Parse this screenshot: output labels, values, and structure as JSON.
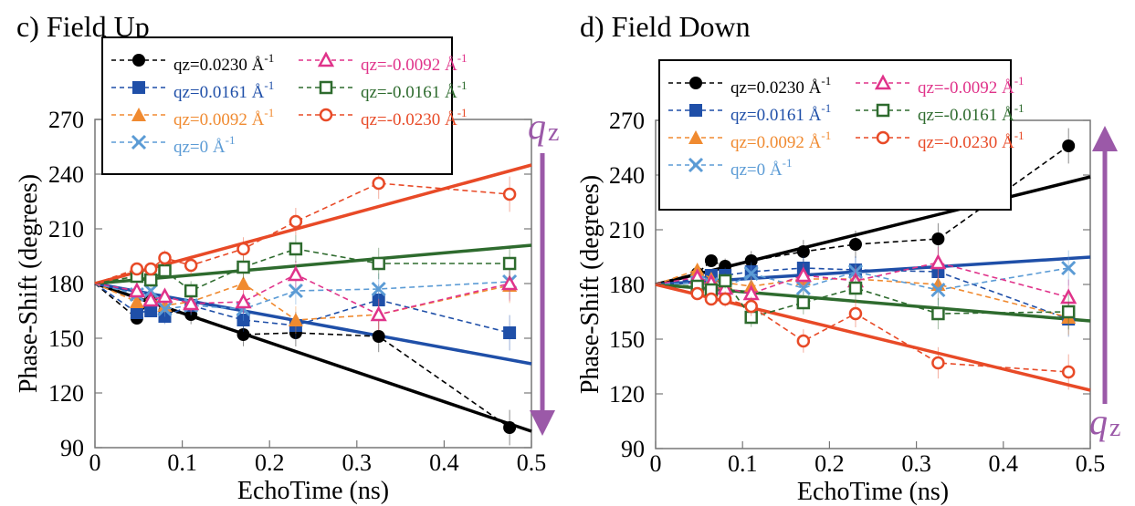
{
  "chart_data": [
    {
      "type": "scatter",
      "panel_label": "c)",
      "title": "Field Up",
      "xlabel": "EchoTime (ns)",
      "ylabel": "Phase-Shift (degrees)",
      "xlim": [
        0,
        0.5
      ],
      "ylim": [
        90,
        270
      ],
      "xticks": [
        "0",
        "0.1",
        "0.2",
        "0.3",
        "0.4",
        "0.5"
      ],
      "yticks": [
        "90",
        "120",
        "150",
        "180",
        "210",
        "240",
        "270"
      ],
      "grid": false,
      "legend_position": "top-left",
      "arrow": {
        "direction": "down",
        "label": "q",
        "label_sub": "z",
        "color": "#9b59a8"
      },
      "x": [
        0.048,
        0.064,
        0.08,
        0.11,
        0.17,
        0.23,
        0.325,
        0.475
      ],
      "series": [
        {
          "name": "qz=0.0230 Å-1",
          "color": "#000000",
          "marker": "circle-filled",
          "values": [
            161,
            172,
            165,
            163,
            152,
            153,
            151,
            101
          ],
          "fit_end": 99
        },
        {
          "name": "qz=0.0161 Å-1",
          "color": "#1f4fa8",
          "marker": "square-filled",
          "values": [
            164,
            165,
            162,
            168,
            160,
            157,
            171,
            153
          ],
          "fit_end": 136
        },
        {
          "name": "qz=0.0092 Å-1",
          "color": "#f08a30",
          "marker": "triangle-filled",
          "values": [
            170,
            172,
            168,
            170,
            180,
            160,
            163,
            179
          ],
          "fit_end": null
        },
        {
          "name": "qz=0 Å-1",
          "color": "#5b9bd5",
          "marker": "x",
          "values": [
            174,
            176,
            166,
            168,
            166,
            176,
            177,
            181
          ],
          "fit_end": null
        },
        {
          "name": "qz=-0.0092 Å-1",
          "color": "#e0338a",
          "marker": "triangle-open",
          "values": [
            176,
            171,
            173,
            169,
            170,
            185,
            163,
            180
          ],
          "fit_end": null
        },
        {
          "name": "qz=-0.0161 Å-1",
          "color": "#2e6b2e",
          "marker": "square-open",
          "values": [
            184,
            182,
            187,
            176,
            189,
            199,
            191,
            191
          ],
          "fit_end": 201
        },
        {
          "name": "qz=-0.0230 Å-1",
          "color": "#e84a27",
          "marker": "circle-open",
          "values": [
            188,
            188,
            194,
            190,
            199,
            214,
            235,
            229
          ],
          "fit_end": 245
        }
      ]
    },
    {
      "type": "scatter",
      "panel_label": "d)",
      "title": "Field Down",
      "xlabel": "EchoTime (ns)",
      "ylabel": "Phase-Shift (degrees)",
      "xlim": [
        0,
        0.5
      ],
      "ylim": [
        90,
        270
      ],
      "xticks": [
        "0",
        "0.1",
        "0.2",
        "0.3",
        "0.4",
        "0.5"
      ],
      "yticks": [
        "90",
        "120",
        "150",
        "180",
        "210",
        "240",
        "270"
      ],
      "grid": false,
      "legend_position": "top-left",
      "arrow": {
        "direction": "up",
        "label": "q",
        "label_sub": "z",
        "color": "#9b59a8"
      },
      "x": [
        0.048,
        0.064,
        0.08,
        0.11,
        0.17,
        0.23,
        0.325,
        0.475
      ],
      "series": [
        {
          "name": "qz=0.0230 Å-1",
          "color": "#000000",
          "marker": "circle-filled",
          "values": [
            186,
            193,
            190,
            193,
            198,
            202,
            205,
            256
          ],
          "fit_end": 239
        },
        {
          "name": "qz=0.0161 Å-1",
          "color": "#1f4fa8",
          "marker": "square-filled",
          "values": [
            183,
            185,
            185,
            187,
            189,
            188,
            187,
            161
          ],
          "fit_end": 195
        },
        {
          "name": "qz=0.0092 Å-1",
          "color": "#f08a30",
          "marker": "triangle-filled",
          "values": [
            188,
            183,
            181,
            179,
            183,
            183,
            180,
            162
          ],
          "fit_end": null
        },
        {
          "name": "qz=0 Å-1",
          "color": "#5b9bd5",
          "marker": "x",
          "values": [
            181,
            180,
            178,
            186,
            178,
            187,
            177,
            189
          ],
          "fit_end": null
        },
        {
          "name": "qz=-0.0092 Å-1",
          "color": "#e0338a",
          "marker": "triangle-open",
          "values": [
            184,
            181,
            178,
            175,
            185,
            182,
            192,
            173
          ],
          "fit_end": null
        },
        {
          "name": "qz=-0.0161 Å-1",
          "color": "#2e6b2e",
          "marker": "square-open",
          "values": [
            179,
            177,
            182,
            162,
            170,
            178,
            164,
            165
          ],
          "fit_end": 160
        },
        {
          "name": "qz=-0.0230 Å-1",
          "color": "#e84a27",
          "marker": "circle-open",
          "values": [
            175,
            172,
            172,
            168,
            149,
            164,
            137,
            132
          ],
          "fit_end": 122
        }
      ]
    }
  ]
}
